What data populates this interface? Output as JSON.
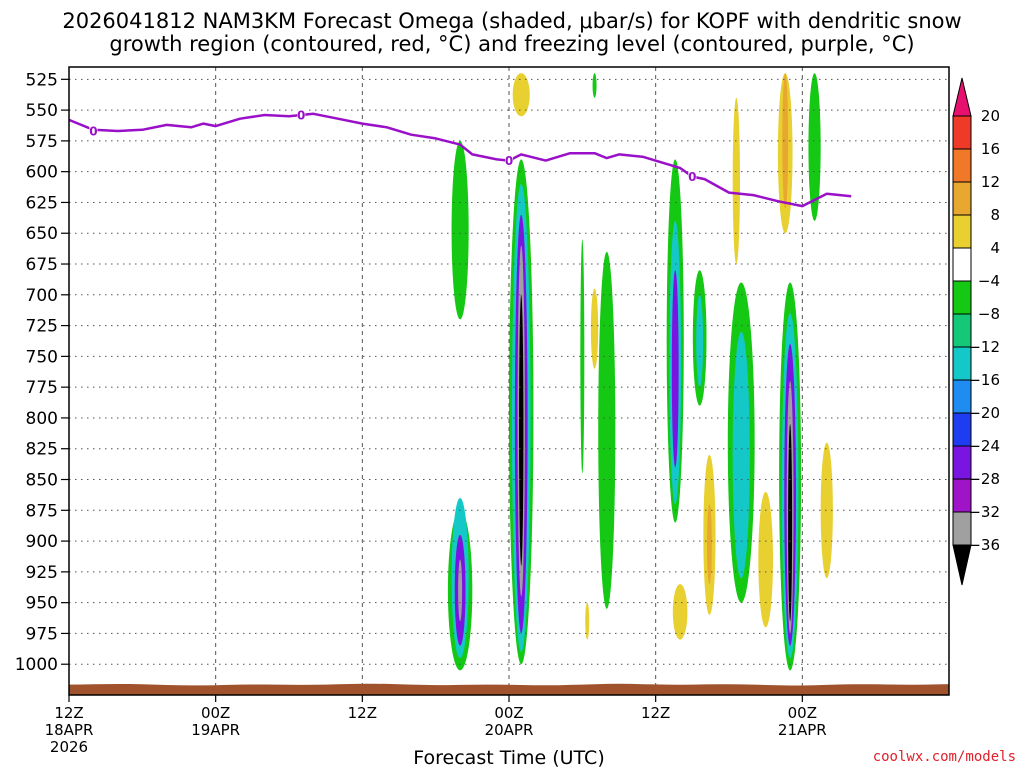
{
  "title_line1": "2026041812 NAM3KM Forecast Omega (shaded, μbar/s) for KOPF with dendritic snow",
  "title_line2": "growth region (contoured, red, °C) and freezing level (contoured, purple, °C)",
  "xlabel": "Forecast Time (UTC)",
  "credit": "coolwx.com/models",
  "colors": {
    "freezing_line": "#9a10c8",
    "terrain": "#a0522d",
    "grid": "#555555"
  },
  "chart_data": {
    "type": "heatmap",
    "units": "μbar/s",
    "x_hours_range": [
      0,
      36
    ],
    "y_pressure_range": [
      1025,
      515
    ],
    "y_ticks": [
      525,
      550,
      575,
      600,
      625,
      650,
      675,
      700,
      725,
      750,
      775,
      800,
      825,
      850,
      875,
      900,
      925,
      950,
      975,
      1000
    ],
    "x_ticks": [
      {
        "hour": 0,
        "l1": "12Z",
        "l2": "18APR",
        "l3": "2026"
      },
      {
        "hour": 6,
        "l1": "00Z",
        "l2": "19APR",
        "l3": ""
      },
      {
        "hour": 12,
        "l1": "12Z",
        "l2": "",
        "l3": ""
      },
      {
        "hour": 18,
        "l1": "00Z",
        "l2": "20APR",
        "l3": ""
      },
      {
        "hour": 24,
        "l1": "12Z",
        "l2": "",
        "l3": ""
      },
      {
        "hour": 30,
        "l1": "00Z",
        "l2": "21APR",
        "l3": ""
      }
    ],
    "colorbar": {
      "labels": [
        "20",
        "16",
        "12",
        "8",
        "4",
        "−4",
        "−8",
        "−12",
        "−16",
        "−20",
        "−24",
        "−28",
        "−32",
        "−36"
      ],
      "colors": [
        "#e8106e",
        "#f03a28",
        "#f07828",
        "#e8a830",
        "#e8d030",
        "#ffffff",
        "#14c814",
        "#14c878",
        "#14c8c8",
        "#1e8cf0",
        "#1e3cf0",
        "#7a14e0",
        "#a014c8",
        "#a0a0a0",
        "#000000"
      ]
    },
    "freezing_level": {
      "label": "0",
      "label_points": [
        [
          1,
          567
        ],
        [
          9.5,
          554
        ],
        [
          18,
          591
        ],
        [
          25.5,
          604
        ]
      ],
      "points": [
        [
          0,
          558
        ],
        [
          1,
          566
        ],
        [
          2,
          567
        ],
        [
          3,
          566
        ],
        [
          4,
          562
        ],
        [
          5,
          564
        ],
        [
          5.5,
          561
        ],
        [
          6,
          563
        ],
        [
          7,
          557
        ],
        [
          8,
          554
        ],
        [
          9,
          555
        ],
        [
          10,
          553
        ],
        [
          11,
          557
        ],
        [
          12,
          561
        ],
        [
          13,
          564
        ],
        [
          14,
          570
        ],
        [
          15,
          573
        ],
        [
          16,
          578
        ],
        [
          16.5,
          586
        ],
        [
          17.5,
          590
        ],
        [
          18,
          591
        ],
        [
          18.5,
          586
        ],
        [
          19.5,
          591
        ],
        [
          20.5,
          585
        ],
        [
          21.5,
          585
        ],
        [
          22,
          589
        ],
        [
          22.5,
          586
        ],
        [
          23.5,
          588
        ],
        [
          24.5,
          594
        ],
        [
          25,
          597
        ],
        [
          25.5,
          604
        ],
        [
          26,
          606
        ],
        [
          27,
          617
        ],
        [
          28,
          619
        ],
        [
          29,
          624
        ],
        [
          30,
          628
        ],
        [
          31,
          618
        ],
        [
          32,
          620
        ]
      ]
    },
    "omega_cells": [
      {
        "hour": 16.0,
        "p_top": 575,
        "p_bottom": 720,
        "half_width_h": 0.35,
        "level": -6
      },
      {
        "hour": 16.0,
        "p_top": 875,
        "p_bottom": 1005,
        "half_width_h": 0.5,
        "level": -6
      },
      {
        "hour": 16.0,
        "p_top": 865,
        "p_bottom": 995,
        "half_width_h": 0.35,
        "level": -14
      },
      {
        "hour": 16.0,
        "p_top": 895,
        "p_bottom": 985,
        "half_width_h": 0.22,
        "level": -26
      },
      {
        "hour": 16.0,
        "p_top": 915,
        "p_bottom": 965,
        "half_width_h": 0.08,
        "level": -33
      },
      {
        "hour": 18.5,
        "p_top": 520,
        "p_bottom": 555,
        "half_width_h": 0.35,
        "level": 6
      },
      {
        "hour": 18.5,
        "p_top": 590,
        "p_bottom": 1000,
        "half_width_h": 0.5,
        "level": -6
      },
      {
        "hour": 18.5,
        "p_top": 610,
        "p_bottom": 990,
        "half_width_h": 0.38,
        "level": -14
      },
      {
        "hour": 18.5,
        "p_top": 635,
        "p_bottom": 975,
        "half_width_h": 0.26,
        "level": -26
      },
      {
        "hour": 18.5,
        "p_top": 660,
        "p_bottom": 945,
        "half_width_h": 0.15,
        "level": -33
      },
      {
        "hour": 18.5,
        "p_top": 700,
        "p_bottom": 920,
        "half_width_h": 0.09,
        "level": -40
      },
      {
        "hour": 21.5,
        "p_top": 520,
        "p_bottom": 540,
        "half_width_h": 0.06,
        "level": -6
      },
      {
        "hour": 21.0,
        "p_top": 655,
        "p_bottom": 845,
        "half_width_h": 0.06,
        "level": -6
      },
      {
        "hour": 22.0,
        "p_top": 665,
        "p_bottom": 955,
        "half_width_h": 0.35,
        "level": -6
      },
      {
        "hour": 21.5,
        "p_top": 695,
        "p_bottom": 760,
        "half_width_h": 0.15,
        "level": 6
      },
      {
        "hour": 21.2,
        "p_top": 950,
        "p_bottom": 980,
        "half_width_h": 0.06,
        "level": 6
      },
      {
        "hour": 24.8,
        "p_top": 590,
        "p_bottom": 885,
        "half_width_h": 0.35,
        "level": -6
      },
      {
        "hour": 24.8,
        "p_top": 640,
        "p_bottom": 870,
        "half_width_h": 0.24,
        "level": -14
      },
      {
        "hour": 24.8,
        "p_top": 680,
        "p_bottom": 840,
        "half_width_h": 0.14,
        "level": -26
      },
      {
        "hour": 25.8,
        "p_top": 680,
        "p_bottom": 790,
        "half_width_h": 0.28,
        "level": -6
      },
      {
        "hour": 25.8,
        "p_top": 700,
        "p_bottom": 775,
        "half_width_h": 0.14,
        "level": -14
      },
      {
        "hour": 27.5,
        "p_top": 690,
        "p_bottom": 950,
        "half_width_h": 0.55,
        "level": -6
      },
      {
        "hour": 27.5,
        "p_top": 730,
        "p_bottom": 930,
        "half_width_h": 0.35,
        "level": -14
      },
      {
        "hour": 29.3,
        "p_top": 520,
        "p_bottom": 650,
        "half_width_h": 0.3,
        "level": 6
      },
      {
        "hour": 29.3,
        "p_top": 520,
        "p_bottom": 630,
        "half_width_h": 0.12,
        "level": 10
      },
      {
        "hour": 30.5,
        "p_top": 520,
        "p_bottom": 640,
        "half_width_h": 0.25,
        "level": -6
      },
      {
        "hour": 27.3,
        "p_top": 540,
        "p_bottom": 675,
        "half_width_h": 0.15,
        "level": 6
      },
      {
        "hour": 25.0,
        "p_top": 935,
        "p_bottom": 980,
        "half_width_h": 0.3,
        "level": 6
      },
      {
        "hour": 26.2,
        "p_top": 830,
        "p_bottom": 960,
        "half_width_h": 0.25,
        "level": 6
      },
      {
        "hour": 26.2,
        "p_top": 870,
        "p_bottom": 935,
        "half_width_h": 0.1,
        "level": 10
      },
      {
        "hour": 28.5,
        "p_top": 860,
        "p_bottom": 970,
        "half_width_h": 0.3,
        "level": 6
      },
      {
        "hour": 29.5,
        "p_top": 690,
        "p_bottom": 1005,
        "half_width_h": 0.45,
        "level": -6
      },
      {
        "hour": 29.5,
        "p_top": 715,
        "p_bottom": 995,
        "half_width_h": 0.34,
        "level": -14
      },
      {
        "hour": 29.5,
        "p_top": 740,
        "p_bottom": 985,
        "half_width_h": 0.24,
        "level": -26
      },
      {
        "hour": 29.5,
        "p_top": 770,
        "p_bottom": 975,
        "half_width_h": 0.14,
        "level": -33
      },
      {
        "hour": 29.5,
        "p_top": 805,
        "p_bottom": 965,
        "half_width_h": 0.08,
        "level": -40
      },
      {
        "hour": 31.0,
        "p_top": 820,
        "p_bottom": 930,
        "half_width_h": 0.25,
        "level": 6
      }
    ]
  }
}
